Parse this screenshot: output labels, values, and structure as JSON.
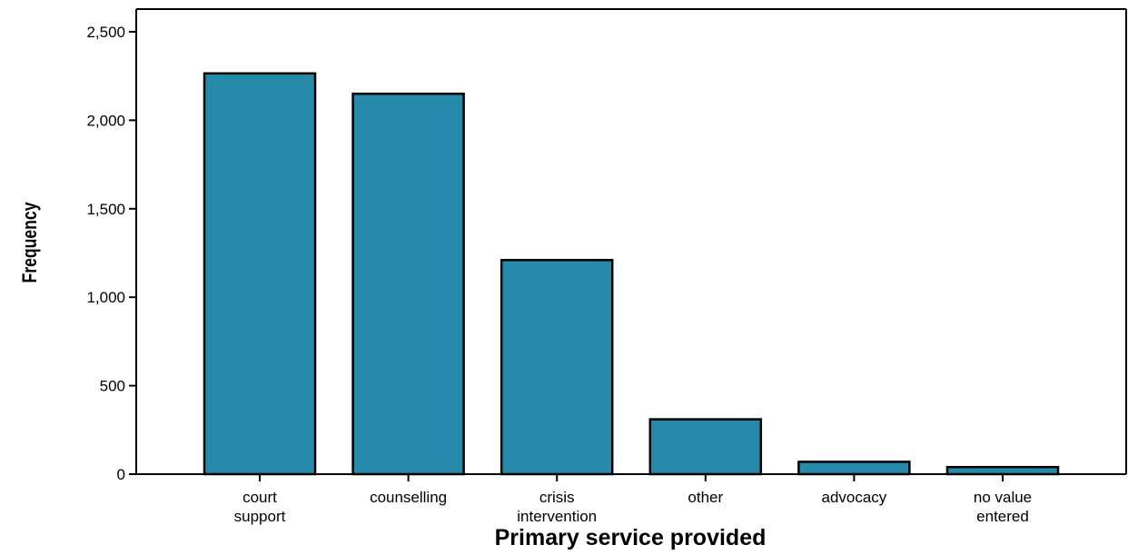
{
  "chart_data": {
    "type": "bar",
    "categories": [
      [
        "court",
        "support"
      ],
      [
        "counselling"
      ],
      [
        "crisis",
        "intervention"
      ],
      [
        "other"
      ],
      [
        "advocacy"
      ],
      [
        "no value",
        "entered"
      ]
    ],
    "values": [
      2265,
      2150,
      1210,
      310,
      70,
      40
    ],
    "xlabel": "Primary service provided",
    "ylabel": "Frequency",
    "ylim": [
      0,
      2500
    ],
    "yticks": [
      0,
      500,
      1000,
      1500,
      2000,
      2500
    ],
    "ytick_labels": [
      "0",
      "500",
      "1,000",
      "1,500",
      "2,000",
      "2,500"
    ],
    "bar_color": "#268aab",
    "bar_edge_color": "#000000",
    "grid": false,
    "legend": "none"
  }
}
